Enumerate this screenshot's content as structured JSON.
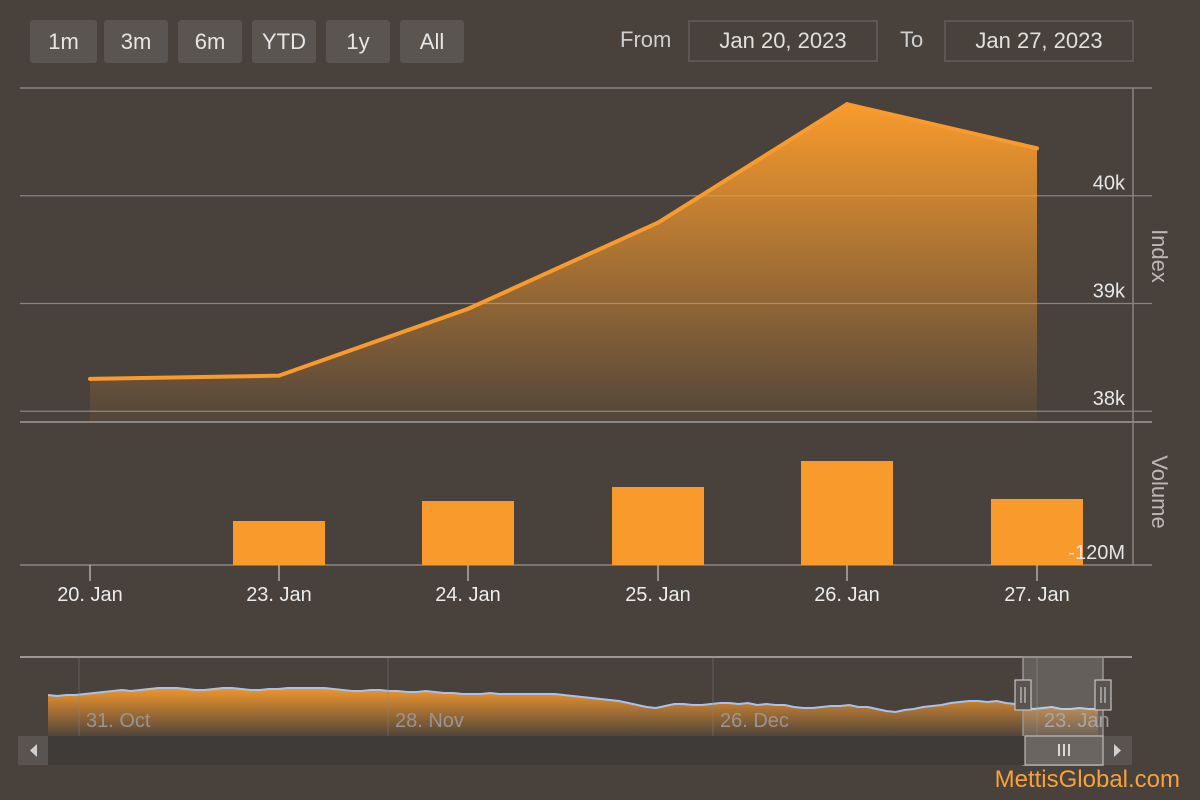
{
  "range_selector": {
    "buttons": [
      "1m",
      "3m",
      "6m",
      "YTD",
      "1y",
      "All"
    ],
    "from_label": "From",
    "from_value": "Jan 20, 2023",
    "to_label": "To",
    "to_value": "Jan 27, 2023"
  },
  "colors": {
    "accent": "#f99b2c",
    "background": "#48413c",
    "grid": "#8a8582",
    "navigator_line": "#a9c1e8"
  },
  "chart_data": [
    {
      "type": "area",
      "ylabel": "Index",
      "categories": [
        "20. Jan",
        "23. Jan",
        "24. Jan",
        "25. Jan",
        "26. Jan",
        "27. Jan"
      ],
      "values": [
        38300,
        38330,
        38950,
        39750,
        40850,
        40440
      ],
      "y_ticks": [
        38000,
        39000,
        40000
      ],
      "y_tick_labels": [
        "38k",
        "39k",
        "40k"
      ],
      "ylim": [
        37900,
        41000
      ],
      "grid": true
    },
    {
      "type": "bar",
      "ylabel": "Volume",
      "categories": [
        "20. Jan",
        "23. Jan",
        "24. Jan",
        "25. Jan",
        "26. Jan",
        "27. Jan"
      ],
      "values": [
        0,
        44,
        64,
        78,
        104,
        66
      ],
      "y_tick_labels": [
        "-120M"
      ],
      "grid": true
    }
  ],
  "navigator": {
    "labels": [
      "31. Oct",
      "28. Nov",
      "26. Dec",
      "23. Jan"
    ],
    "series": [
      38,
      39,
      38,
      38,
      37,
      36,
      35,
      34,
      33,
      34,
      33,
      32,
      31,
      31,
      31,
      32,
      33,
      33,
      32,
      31,
      31,
      32,
      33,
      33,
      32,
      32,
      31,
      31,
      31,
      31,
      31,
      32,
      33,
      34,
      34,
      33,
      33,
      34,
      34,
      35,
      35,
      34,
      35,
      36,
      36,
      37,
      37,
      37,
      36,
      37,
      37,
      37,
      37,
      37,
      37,
      37,
      38,
      39,
      40,
      41,
      42,
      43,
      44,
      46,
      48,
      50,
      51,
      49,
      47,
      47,
      48,
      48,
      47,
      46,
      46,
      47,
      46,
      48,
      47,
      48,
      48,
      50,
      51,
      51,
      50,
      49,
      49,
      48,
      50,
      50,
      52,
      54,
      55,
      53,
      52,
      50,
      49,
      48,
      46,
      45,
      44,
      44,
      45,
      44,
      46,
      47,
      50,
      52,
      51,
      50,
      52,
      52,
      51,
      52,
      52
    ]
  },
  "watermark": "MettisGlobal.com"
}
